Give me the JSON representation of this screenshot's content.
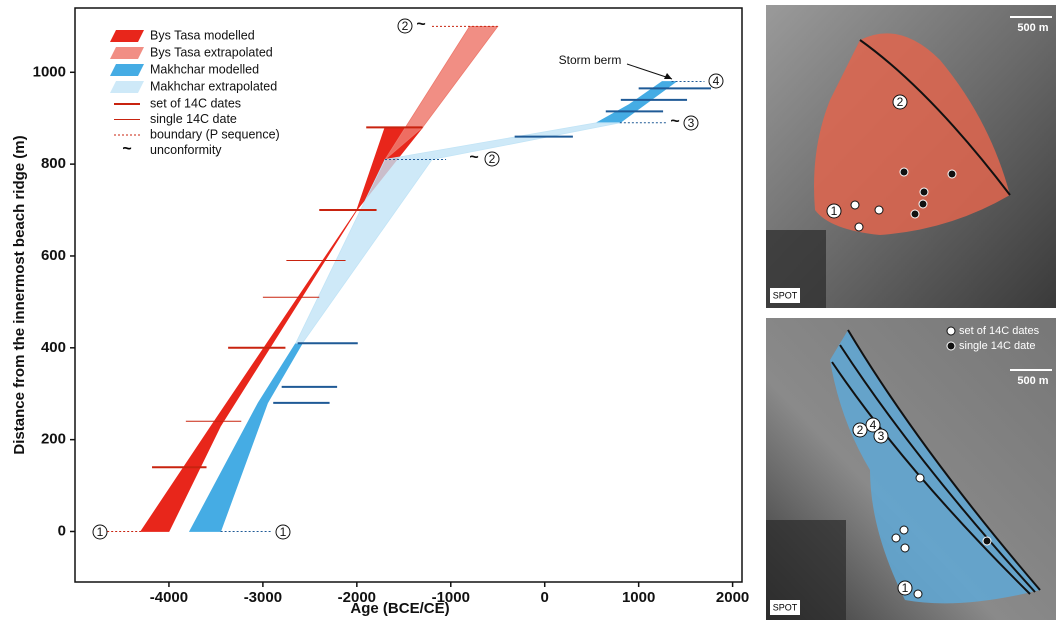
{
  "chart_data": {
    "type": "band",
    "xlabel": "Age (BCE/CE)",
    "ylabel": "Distance from the innermost beach ridge (m)",
    "xlim": [
      -5000,
      2100
    ],
    "xticks": [
      -4000,
      -3000,
      -2000,
      -1000,
      0,
      1000,
      2000
    ],
    "ylim": [
      -110,
      1140
    ],
    "yticks": [
      0,
      200,
      400,
      600,
      800,
      1000
    ],
    "series": [
      {
        "name": "Bys Tasa modelled",
        "type": "area",
        "color": "#e8261b",
        "opacity": 1,
        "x": [
          -4300,
          -3550,
          -2000,
          -1700,
          -1300,
          -2000,
          -3450,
          -4000
        ],
        "y": [
          0,
          230,
          700,
          880,
          880,
          700,
          230,
          0
        ]
      },
      {
        "name": "Bys Tasa extrapolated",
        "type": "area",
        "color": "#ee7a6e",
        "opacity": 0.85,
        "x": [
          -1700,
          -1300,
          -500,
          -800
        ],
        "y": [
          810,
          880,
          1100,
          1100
        ]
      },
      {
        "name": "Makhchar modelled",
        "type": "area",
        "color": "#45ace4",
        "opacity": 1,
        "x": [
          -3780,
          -3450,
          -2950,
          -2580,
          -2650,
          -3050,
          null,
          550,
          800,
          1000,
          1400,
          1250,
          900
        ],
        "y": [
          0,
          0,
          280,
          410,
          410,
          280,
          null,
          890,
          890,
          920,
          980,
          980,
          930
        ]
      },
      {
        "name": "Makhchar extrapolated",
        "type": "area",
        "color": "#c2e4f6",
        "opacity": 0.8,
        "x": [
          -2650,
          -2580,
          -1200,
          800,
          550,
          -1700
        ],
        "y": [
          410,
          410,
          810,
          890,
          890,
          810
        ]
      },
      {
        "name": "set of 14C dates",
        "type": "segments",
        "width": 2,
        "segments": [
          {
            "color": "#c8230f",
            "y": 880,
            "x": [
              -1900,
              -1300
            ]
          },
          {
            "color": "#c8230f",
            "y": 700,
            "x": [
              -2400,
              -1790
            ]
          },
          {
            "color": "#c8230f",
            "y": 400,
            "x": [
              -3370,
              -2760
            ]
          },
          {
            "color": "#c8230f",
            "y": 140,
            "x": [
              -4180,
              -3600
            ]
          },
          {
            "color": "#1f5a96",
            "y": 410,
            "x": [
              -2630,
              -1990
            ]
          },
          {
            "color": "#1f5a96",
            "y": 315,
            "x": [
              -2800,
              -2210
            ]
          },
          {
            "color": "#1f5a96",
            "y": 280,
            "x": [
              -2890,
              -2290
            ]
          },
          {
            "color": "#1f5a96",
            "y": 860,
            "x": [
              -320,
              300
            ]
          },
          {
            "color": "#1f5a96",
            "y": 915,
            "x": [
              650,
              1260
            ]
          },
          {
            "color": "#1f5a96",
            "y": 940,
            "x": [
              810,
              1515
            ]
          },
          {
            "color": "#1f5a96",
            "y": 965,
            "x": [
              1000,
              1770
            ]
          }
        ]
      },
      {
        "name": "single 14C date",
        "type": "segments",
        "width": 1,
        "segments": [
          {
            "color": "#c8230f",
            "y": 590,
            "x": [
              -2750,
              -2120
            ]
          },
          {
            "color": "#c8230f",
            "y": 510,
            "x": [
              -3000,
              -2400
            ]
          },
          {
            "color": "#c8230f",
            "y": 240,
            "x": [
              -3820,
              -3230
            ]
          }
        ]
      },
      {
        "name": "boundary (P sequence)",
        "type": "segments",
        "width": 1,
        "dash": true,
        "segments": [
          {
            "color": "#c8230f",
            "y": 1100,
            "x": [
              -1200,
              -500
            ]
          },
          {
            "color": "#c8230f",
            "y": 0,
            "x": [
              -4700,
              -4300
            ]
          },
          {
            "color": "#1f5a96",
            "y": 0,
            "x": [
              -3450,
              -2900
            ]
          },
          {
            "color": "#1f5a96",
            "y": 810,
            "x": [
              -1700,
              -1050
            ]
          },
          {
            "color": "#1f5a96",
            "y": 890,
            "x": [
              800,
              1300
            ]
          },
          {
            "color": "#1f5a96",
            "y": 980,
            "x": [
              1350,
              1700
            ]
          }
        ]
      },
      {
        "name": "unconformity",
        "type": "symbol",
        "symbol": "~"
      }
    ],
    "annotations": [
      "1",
      "1",
      "2",
      "~",
      "~",
      "2",
      "~",
      "3",
      "4",
      "Storm berm"
    ]
  },
  "maps": {
    "top": {
      "scale": "500 m",
      "source": "SPOT",
      "markers": [
        "2",
        "1"
      ]
    },
    "bottom": {
      "scale": "500 m",
      "source": "SPOT",
      "legend": [
        "set of 14C dates",
        "single 14C date"
      ],
      "markers": [
        "4",
        "2",
        "3",
        "1"
      ]
    }
  }
}
